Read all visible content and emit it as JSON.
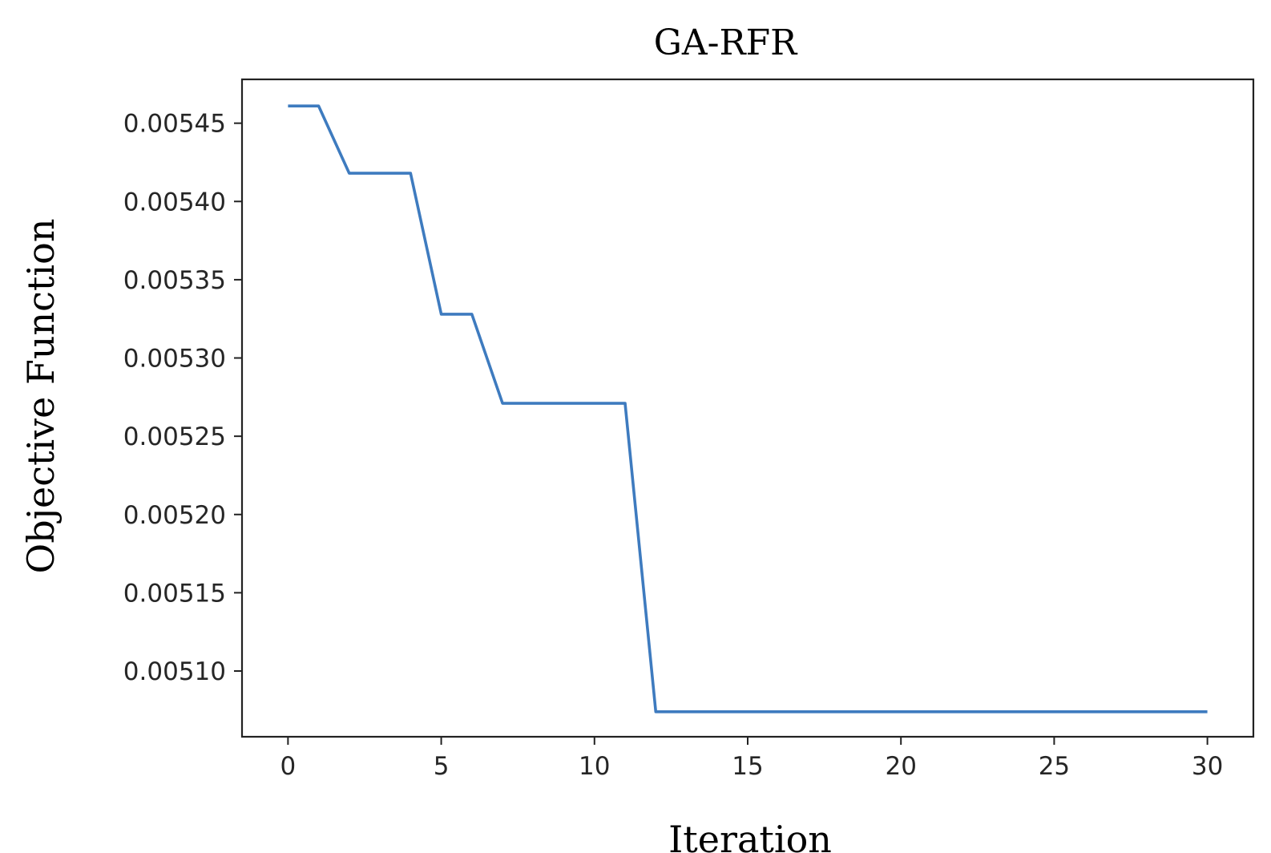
{
  "chart_data": {
    "type": "line",
    "title": "GA-RFR",
    "xlabel": "Iteration",
    "ylabel": "Objective Function",
    "xlim": [
      -1.5,
      31.5
    ],
    "ylim": [
      0.005058,
      0.005478
    ],
    "xticks": [
      0,
      5,
      10,
      15,
      20,
      25,
      30
    ],
    "xtick_labels": [
      "0",
      "5",
      "10",
      "15",
      "20",
      "25",
      "30"
    ],
    "yticks": [
      0.0051,
      0.00515,
      0.0052,
      0.00525,
      0.0053,
      0.00535,
      0.0054,
      0.00545
    ],
    "ytick_labels": [
      "0.00510",
      "0.00515",
      "0.00520",
      "0.00525",
      "0.00530",
      "0.00535",
      "0.00540",
      "0.00545"
    ],
    "grid": false,
    "series": [
      {
        "color": "#3e7bbf",
        "x": [
          0,
          1,
          2,
          3,
          4,
          5,
          6,
          7,
          8,
          9,
          10,
          11,
          12,
          13,
          14,
          15,
          16,
          17,
          18,
          19,
          20,
          21,
          22,
          23,
          24,
          25,
          26,
          27,
          28,
          29,
          30
        ],
        "y": [
          0.005461,
          0.005461,
          0.005418,
          0.005418,
          0.005418,
          0.005328,
          0.005328,
          0.005271,
          0.005271,
          0.005271,
          0.005271,
          0.005271,
          0.005074,
          0.005074,
          0.005074,
          0.005074,
          0.005074,
          0.005074,
          0.005074,
          0.005074,
          0.005074,
          0.005074,
          0.005074,
          0.005074,
          0.005074,
          0.005074,
          0.005074,
          0.005074,
          0.005074,
          0.005074,
          0.005074
        ]
      }
    ]
  }
}
